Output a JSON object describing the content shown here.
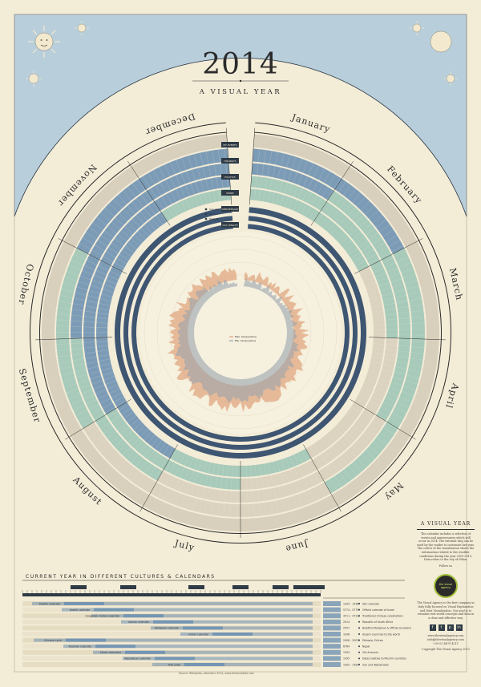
{
  "title": {
    "year": "2014",
    "subtitle": "A VISUAL YEAR"
  },
  "months": [
    "January",
    "February",
    "March",
    "April",
    "May",
    "June",
    "July",
    "August",
    "September",
    "October",
    "November",
    "December"
  ],
  "legend_items": [
    "MY EVENTS",
    "HOLIDAYS",
    "POLITICS",
    "SPORT",
    "ANNIVERSARY",
    "DAY LENGTH"
  ],
  "sun_legend": [
    "Sun rise",
    "Sun set",
    "Twilight"
  ],
  "temperature_legend": [
    "Max. temperature",
    "Min. temperature"
  ],
  "side_panel": {
    "title": "A VISUAL YEAR",
    "text": "The calendar includes a selection of events and anniversaries which will occur in 2014. The external ring can be used by the reader to customize her year. The center of the visualization shows the information related to the weather conditions during the year 2010-2013. Data refers to the city of Milan.",
    "follow": "Follow us",
    "logo_text": "the visual agency",
    "agency_text": "The Visual Agency is the first company in Italy fully focused on Visual Explanation and Data Visualization. Our goal is to visualize real world concepts and data in a clear and effective way.",
    "website": "www.thevisualagency.com",
    "email": "info@thevisualagency.com",
    "phone": "+39 02 4679 4211",
    "copyright": "Copyright The Visual Agency 2013",
    "social": [
      "f",
      "t",
      "p",
      "in"
    ]
  },
  "cultures": {
    "title": "CURRENT YEAR IN DIFFERENT CULTURES & CALENDARS",
    "source": "Source: Wikipedia, calendars 2014, www.timeanddate.com",
    "rows": [
      {
        "label": "Muslim calendar",
        "year": "1435 - 1436",
        "description": "Hijri calendar"
      },
      {
        "label": "Jewish calendar",
        "year": "5774 - 5775",
        "description": "Official calendar of Israel"
      },
      {
        "label": "Gregorian / Julian calendar",
        "year": "4711 - 4712",
        "description": "Traditional Chinese celebrations"
      },
      {
        "label": "Iranian calendar",
        "year": "2014",
        "description": "Republic of South Africa"
      },
      {
        "label": "Ethiopian calendar",
        "year": "2557",
        "description": "Buddhist Religious & official occasions"
      },
      {
        "label": "Indian calendar",
        "year": "1936",
        "description": "Assam countries to the world"
      },
      {
        "label": "Chinese cycle",
        "year": "2006 - 2007",
        "description": "Ethiopia, Eritrea"
      },
      {
        "label": "Assyrian calendar",
        "year": "6764",
        "description": "Nepal"
      },
      {
        "label": "Hindu calendars",
        "year": "1393",
        "description": "Old Armenia"
      },
      {
        "label": "Republican calendar",
        "year": "1435",
        "description": "Dates relative to Muslim countries"
      },
      {
        "label": "Thai solar",
        "year": "1392 - 1393",
        "description": "Iran and Afghanistan"
      }
    ]
  },
  "colors": {
    "background": "#f3ecd7",
    "sky": "#b6cbd9",
    "ring_beige": "#d8cfbc",
    "ring_blue": "#6f92b2",
    "ring_green": "#9fc7b7",
    "ring_navy": "#3e5672",
    "temp_orange": "#e0a27a",
    "temp_gray": "#9aa3ad"
  }
}
